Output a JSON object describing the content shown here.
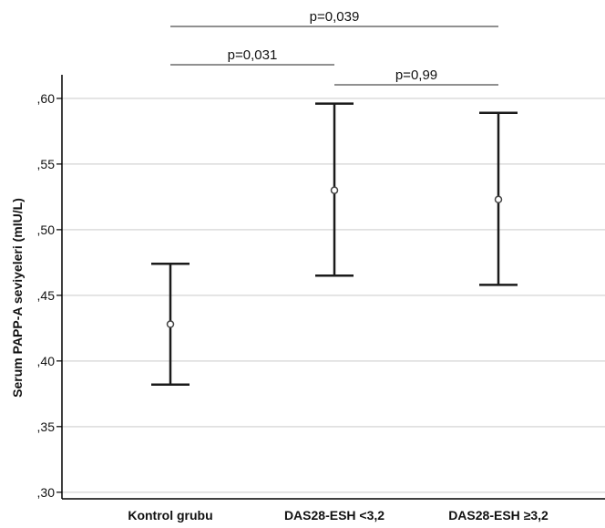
{
  "chart_data": {
    "type": "errorbar",
    "title": "",
    "xlabel": "",
    "ylabel": "Serum PAPP-A seviyeleri (mIU/L)",
    "ylim": [
      0.295,
      0.618
    ],
    "yticks": [
      0.3,
      0.35,
      0.4,
      0.45,
      0.5,
      0.55,
      0.6
    ],
    "ytick_labels": [
      ",30",
      ",35",
      ",40",
      ",45",
      ",50",
      ",55",
      ",60"
    ],
    "grid": true,
    "categories": [
      "Kontrol grubu",
      "DAS28-ESH <3,2",
      "DAS28-ESH ≥3,2"
    ],
    "means": [
      0.428,
      0.53,
      0.523
    ],
    "lower": [
      0.382,
      0.465,
      0.458
    ],
    "upper": [
      0.474,
      0.596,
      0.589
    ],
    "comparisons": [
      {
        "from": 0,
        "to": 2,
        "label": "p=0,039"
      },
      {
        "from": 0,
        "to": 1,
        "label": "p=0,031"
      },
      {
        "from": 1,
        "to": 2,
        "label": "p=0,99"
      }
    ],
    "colors": {
      "bar": "#1a1a1a",
      "grid": "#dcdcdc",
      "axis": "#000000"
    }
  }
}
